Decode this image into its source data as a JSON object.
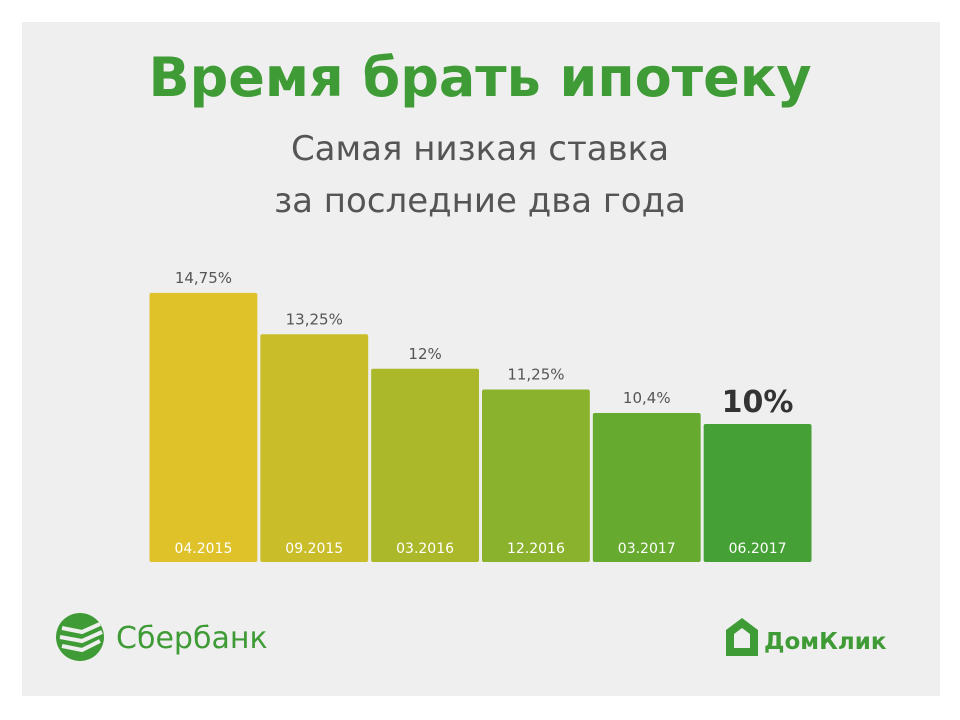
{
  "chart_data": {
    "type": "bar",
    "title": "Время брать ипотеку",
    "subtitle": [
      "Самая низкая ставка",
      "за последние два года"
    ],
    "categories": [
      "04.2015",
      "09.2015",
      "03.2016",
      "12.2016",
      "03.2017",
      "06.2017"
    ],
    "values": [
      14.75,
      13.25,
      12,
      11.25,
      10.4,
      10
    ],
    "value_labels": [
      "14,75%",
      "13,25%",
      "12%",
      "11,25%",
      "10,4%",
      "10%"
    ],
    "colors": [
      "#dfc12a",
      "#c9bd29",
      "#aab82a",
      "#8bb22c",
      "#66aa30",
      "#45a136"
    ],
    "ylim": [
      5,
      15
    ]
  },
  "logos": {
    "left": "Сбербанк",
    "right": "ДомКлик"
  }
}
